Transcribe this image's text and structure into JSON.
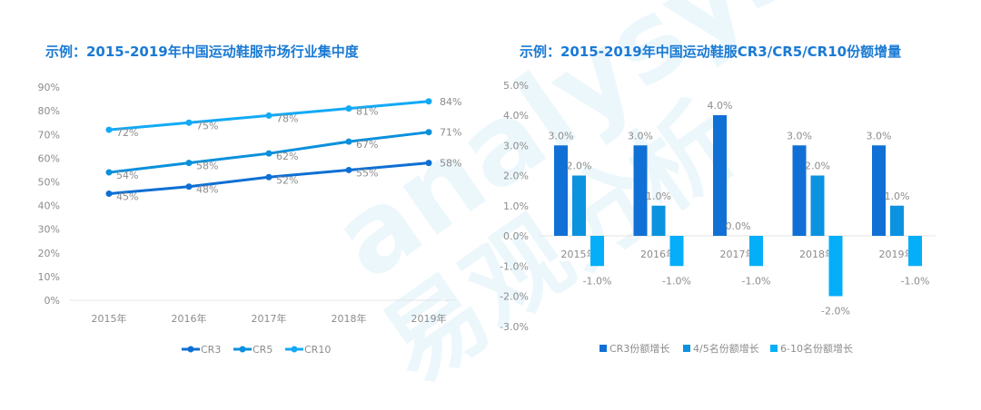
{
  "watermark": {
    "latin": "analysys",
    "chinese": "易观分析"
  },
  "chart_data": [
    {
      "type": "line",
      "title": "示例：2015-2019年中国运动鞋服市场行业集中度",
      "categories": [
        "2015年",
        "2016年",
        "2017年",
        "2018年",
        "2019年"
      ],
      "yticks": [
        "0%",
        "10%",
        "20%",
        "30%",
        "40%",
        "50%",
        "60%",
        "70%",
        "80%",
        "90%"
      ],
      "ylim": [
        0,
        90
      ],
      "grid": false,
      "legend": "bottom",
      "series": [
        {
          "name": "CR3",
          "values": [
            45,
            48,
            52,
            55,
            58
          ],
          "labels": [
            "45%",
            "48%",
            "52%",
            "55%",
            "58%"
          ],
          "color": "#0e6fd4"
        },
        {
          "name": "CR5",
          "values": [
            54,
            58,
            62,
            67,
            71
          ],
          "labels": [
            "54%",
            "58%",
            "62%",
            "67%",
            "71%"
          ],
          "color": "#0a90dc"
        },
        {
          "name": "CR10",
          "values": [
            72,
            75,
            78,
            81,
            84
          ],
          "labels": [
            "72%",
            "75%",
            "78%",
            "81%",
            "84%"
          ],
          "color": "#12aaf6"
        }
      ]
    },
    {
      "type": "bar",
      "title": "示例：2015-2019年中国运动鞋服CR3/CR5/CR10份额增量",
      "categories": [
        "2015年",
        "2016年",
        "2017年",
        "2018年",
        "2019年"
      ],
      "yticks": [
        "-3.0%",
        "-2.0%",
        "-1.0%",
        "0.0%",
        "1.0%",
        "2.0%",
        "3.0%",
        "4.0%",
        "5.0%"
      ],
      "ylim": [
        -3,
        5
      ],
      "grid": false,
      "legend": "bottom",
      "series": [
        {
          "name": "CR3份额增长",
          "values": [
            3,
            3,
            4,
            3,
            3
          ],
          "labels": [
            "3.0%",
            "3.0%",
            "4.0%",
            "3.0%",
            "3.0%"
          ],
          "color": "#1070d6"
        },
        {
          "name": "4/5名份额增长",
          "values": [
            2,
            1,
            0,
            2,
            1
          ],
          "labels": [
            "2.0%",
            "1.0%",
            "0.0%",
            "2.0%",
            "1.0%"
          ],
          "color": "#0b93e0"
        },
        {
          "name": "6-10名份额增长",
          "values": [
            -1,
            -1,
            -1,
            -2,
            -1
          ],
          "labels": [
            "-1.0%",
            "-1.0%",
            "-1.0%",
            "-2.0%",
            "-1.0%"
          ],
          "color": "#05aef8"
        }
      ]
    }
  ]
}
